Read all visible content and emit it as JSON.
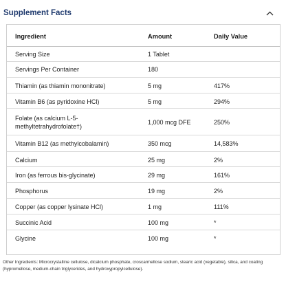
{
  "panel": {
    "title": "Supplement Facts",
    "toggle_icon": "chevron-up-icon"
  },
  "table": {
    "headers": [
      "Ingredient",
      "Amount",
      "Daily Value"
    ],
    "rows": [
      {
        "ingredient": "Serving Size",
        "amount": "1 Tablet",
        "dv": ""
      },
      {
        "ingredient": "Servings Per Container",
        "amount": "180",
        "dv": ""
      },
      {
        "ingredient": "Thiamin (as thiamin mononitrate)",
        "amount": "5 mg",
        "dv": "417%"
      },
      {
        "ingredient": "Vitamin B6 (as pyridoxine HCl)",
        "amount": "5 mg",
        "dv": "294%"
      },
      {
        "ingredient_line1": "Folate (as calcium L-5-",
        "ingredient_line2": "methyltetrahydrofolate†)",
        "amount": "1,000 mcg DFE",
        "dv": "250%"
      },
      {
        "ingredient": "Vitamin B12 (as methylcobalamin)",
        "amount": "350 mcg",
        "dv": "14,583%"
      },
      {
        "ingredient": "Calcium",
        "amount": "25 mg",
        "dv": "2%"
      },
      {
        "ingredient": "Iron (as ferrous bis-glycinate)",
        "amount": "29 mg",
        "dv": "161%"
      },
      {
        "ingredient": "Phosphorus",
        "amount": "19 mg",
        "dv": "2%"
      },
      {
        "ingredient": "Copper (as copper lysinate HCl)",
        "amount": "1 mg",
        "dv": "111%"
      },
      {
        "ingredient": "Succinic Acid",
        "amount": "100 mg",
        "dv": "*"
      },
      {
        "ingredient": "Glycine",
        "amount": "100 mg",
        "dv": "*"
      }
    ]
  },
  "footnote": "Other Ingredients: Microcrystalline cellulose, dicalcium phosphate, croscarmellose sodium, stearic acid (vegetable), silica, and coating (hypromellose, medium-chain triglycerides, and hydroxypropylcellulose).",
  "colors": {
    "title": "#1f3a6e",
    "border": "#cfcfcf",
    "divider": "#d9d9d9"
  }
}
